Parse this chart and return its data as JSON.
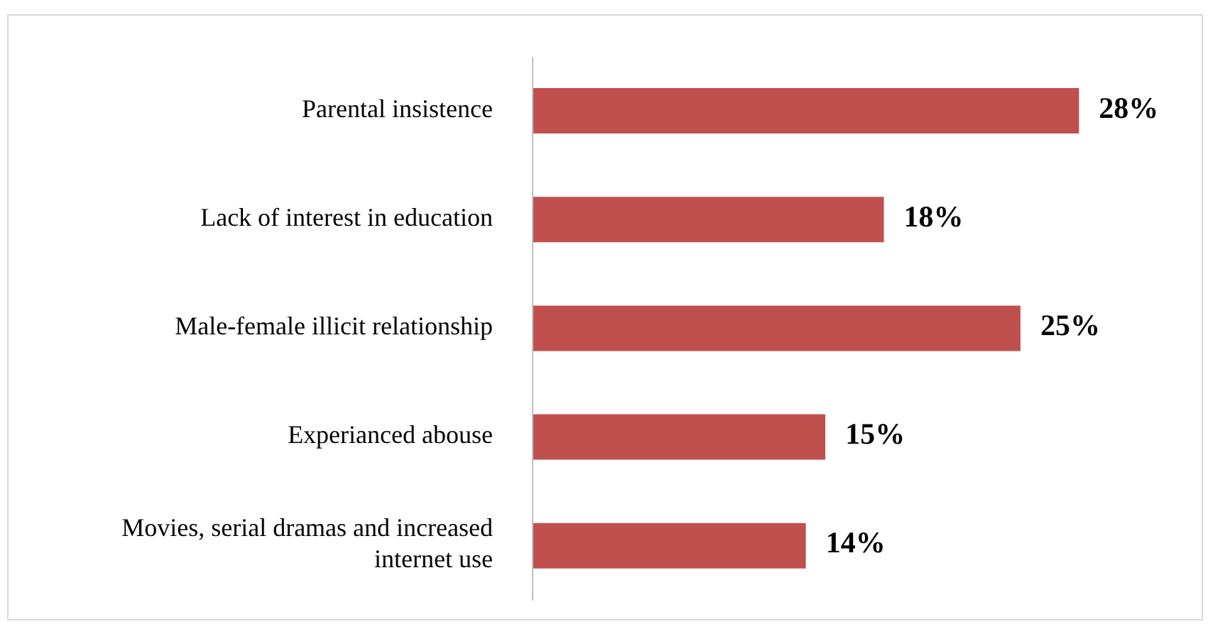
{
  "chart_data": {
    "type": "bar",
    "orientation": "horizontal",
    "categories": [
      "Parental insistence",
      "Lack of interest in education",
      "Male-female illicit relationship",
      "Experianced abouse",
      "Movies, serial dramas and increased internet use"
    ],
    "values": [
      28,
      18,
      25,
      15,
      14
    ],
    "value_labels": [
      "28%",
      "18%",
      "25%",
      "15%",
      "14%"
    ],
    "color": "#c0504d"
  }
}
